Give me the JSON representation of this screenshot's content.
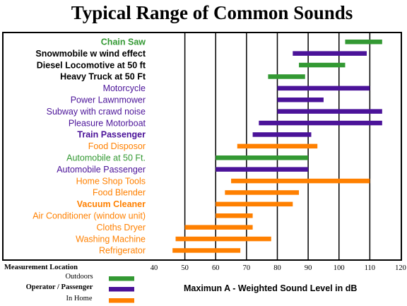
{
  "chart_data": {
    "type": "bar",
    "subtype": "floating-range",
    "title": "Typical Range of Common Sounds",
    "xlabel": "Maximun A - Weighted Sound Level in dB",
    "xlim": [
      40,
      120
    ],
    "xticks": [
      40,
      50,
      60,
      70,
      80,
      90,
      100,
      110,
      120
    ],
    "grid": true,
    "legend": {
      "title": "Measurement Location",
      "placement": "bottom-left",
      "entries": [
        {
          "name": "Outdoors",
          "color": "#339933"
        },
        {
          "name": "Operator / Passenger",
          "color": "#4b1399"
        },
        {
          "name": "In Home",
          "color": "#ff8000"
        }
      ]
    },
    "series": [
      {
        "name": "Chain Saw",
        "category": "Outdoors",
        "bold": true,
        "range": [
          102,
          114
        ]
      },
      {
        "name": "Snowmobile w wind effect",
        "category": "Operator / Passenger",
        "bold": true,
        "range": [
          85,
          109
        ]
      },
      {
        "name": "Diesel Locomotive at 50 ft",
        "category": "Outdoors",
        "bold": true,
        "range": [
          87,
          102
        ]
      },
      {
        "name": "Heavy Truck at 50 Ft",
        "category": "Outdoors",
        "bold": true,
        "range": [
          77,
          89
        ]
      },
      {
        "name": "Motorcycle",
        "category": "Operator / Passenger",
        "bold": false,
        "range": [
          80,
          110
        ]
      },
      {
        "name": "Power Lawnmower",
        "category": "Operator / Passenger",
        "bold": false,
        "range": [
          80,
          95
        ]
      },
      {
        "name": "Subway with crawd noise",
        "category": "Operator / Passenger",
        "bold": false,
        "range": [
          80,
          114
        ]
      },
      {
        "name": "Pleasure Motorboat",
        "category": "Operator / Passenger",
        "bold": false,
        "range": [
          74,
          114
        ]
      },
      {
        "name": "Train Passenger",
        "category": "Operator / Passenger",
        "bold": true,
        "range": [
          72,
          91
        ]
      },
      {
        "name": "Food Disposor",
        "category": "In Home",
        "bold": false,
        "range": [
          67,
          93
        ]
      },
      {
        "name": "Automobile at 50 Ft.",
        "category": "Outdoors",
        "bold": false,
        "range": [
          60,
          90
        ]
      },
      {
        "name": "Automobile Passenger",
        "category": "Operator / Passenger",
        "bold": false,
        "range": [
          60,
          90
        ]
      },
      {
        "name": "Home Shop Tools",
        "category": "In Home",
        "bold": false,
        "range": [
          65,
          110
        ]
      },
      {
        "name": "Food Blender",
        "category": "In Home",
        "bold": false,
        "range": [
          63,
          87
        ]
      },
      {
        "name": "Vacuum Cleaner",
        "category": "In Home",
        "bold": true,
        "range": [
          60,
          85
        ]
      },
      {
        "name": "Air Conditioner (window unit)",
        "category": "In Home",
        "bold": false,
        "range": [
          60,
          72
        ]
      },
      {
        "name": "Cloths Dryer",
        "category": "In Home",
        "bold": false,
        "range": [
          50,
          72
        ]
      },
      {
        "name": "Washing Machine",
        "category": "In Home",
        "bold": false,
        "range": [
          47,
          78
        ]
      },
      {
        "name": "Refrigerator",
        "category": "In Home",
        "bold": false,
        "range": [
          46,
          68
        ]
      }
    ]
  }
}
